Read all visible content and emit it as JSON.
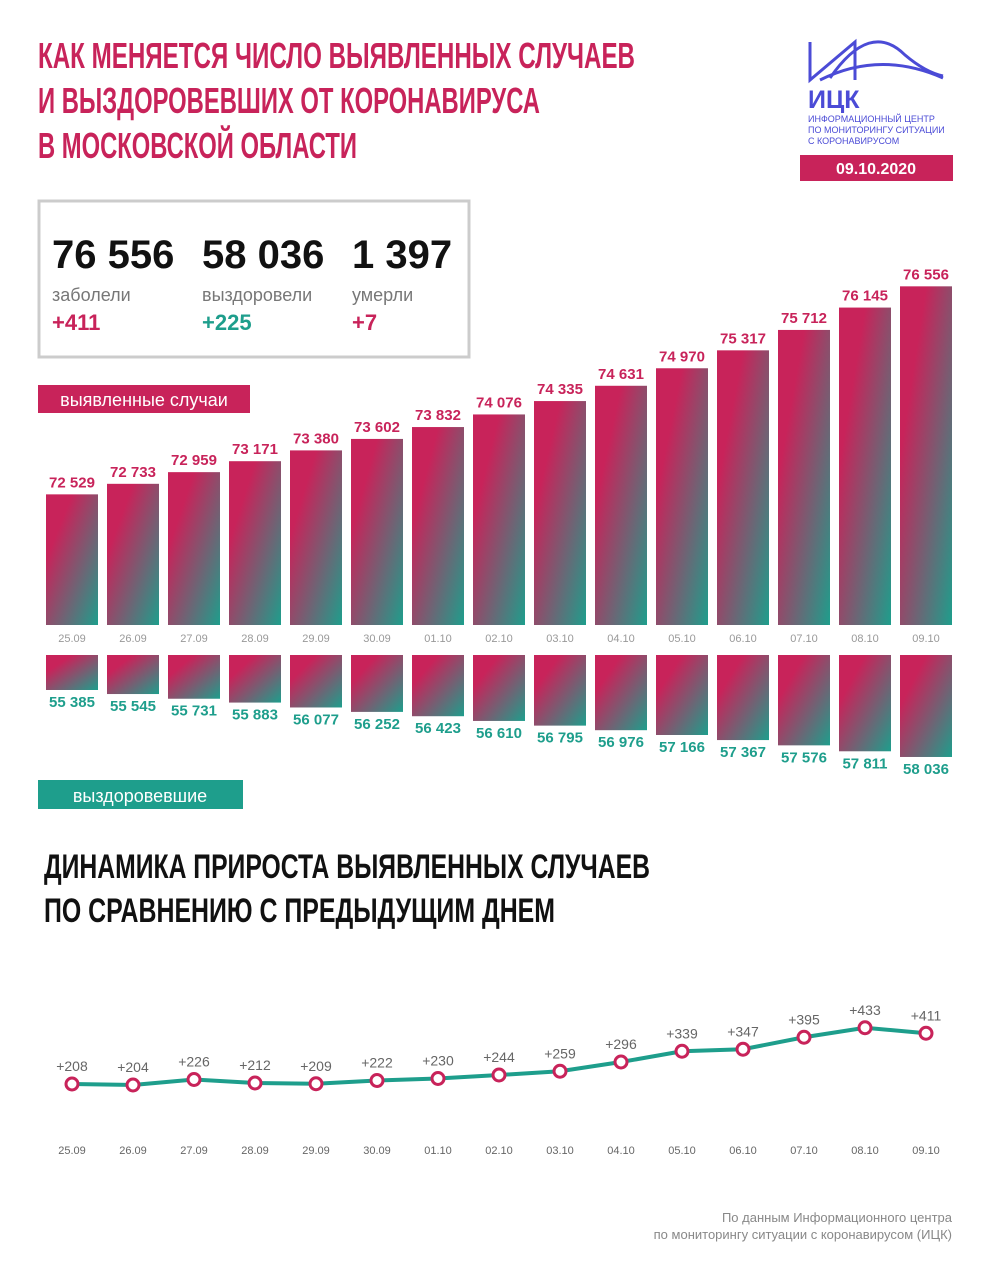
{
  "header": {
    "title": [
      "КАК МЕНЯЕТСЯ ЧИСЛО ВЫЯВЛЕННЫХ СЛУЧАЕВ",
      "И ВЫЗДОРОВЕВШИХ ОТ КОРОНАВИРУСА",
      "В МОСКОВСКОЙ ОБЛАСТИ"
    ],
    "logo": "ИЦК",
    "logo_subtitle": [
      "ИНФОРМАЦИОННЫЙ ЦЕНТР",
      "ПО МОНИТОРИНГУ СИТУАЦИИ",
      "С КОРОНАВИРУСОМ"
    ],
    "date": "09.10.2020"
  },
  "summary": [
    {
      "value": "76 556",
      "label": "заболели",
      "delta": "+411"
    },
    {
      "value": "58 036",
      "label": "выздоровели",
      "delta": "+225"
    },
    {
      "value": "1 397",
      "label": "умерли",
      "delta": "+7"
    }
  ],
  "chart_data": [
    {
      "type": "bar",
      "name": "выявленные случаи",
      "categories": [
        "25.09",
        "26.09",
        "27.09",
        "28.09",
        "29.09",
        "30.09",
        "01.10",
        "02.10",
        "03.10",
        "04.10",
        "05.10",
        "06.10",
        "07.10",
        "08.10",
        "09.10"
      ],
      "values": [
        72529,
        72733,
        72959,
        73171,
        73380,
        73602,
        73832,
        74076,
        74335,
        74631,
        74970,
        75317,
        75712,
        76145,
        76556
      ],
      "value_labels": [
        "72 529",
        "72 733",
        "72 959",
        "73 171",
        "73 380",
        "73 602",
        "73 832",
        "74 076",
        "74 335",
        "74 631",
        "74 970",
        "75 317",
        "75 712",
        "76 145",
        "76 556"
      ],
      "ylim": [
        70000,
        77000
      ],
      "direction": "up",
      "color": "#c8235a"
    },
    {
      "type": "bar",
      "name": "выздоровевшие",
      "values": [
        55385,
        55545,
        55731,
        55883,
        56077,
        56252,
        56423,
        56610,
        56795,
        56976,
        57166,
        57367,
        57576,
        57811,
        58036
      ],
      "value_labels": [
        "55 385",
        "55 545",
        "55 731",
        "55 883",
        "56 077",
        "56 252",
        "56 423",
        "56 610",
        "56 795",
        "56 976",
        "57 166",
        "57 367",
        "57 576",
        "57 811",
        "58 036"
      ],
      "ylim": [
        54000,
        58500
      ],
      "direction": "down",
      "color": "#1e9e8c"
    },
    {
      "type": "line",
      "title": [
        "ДИНАМИКА ПРИРОСТА ВЫЯВЛЕННЫХ СЛУЧАЕВ",
        "ПО СРАВНЕНИЮ С ПРЕДЫДУЩИМ ДНЕМ"
      ],
      "categories": [
        "25.09",
        "26.09",
        "27.09",
        "28.09",
        "29.09",
        "30.09",
        "01.10",
        "02.10",
        "03.10",
        "04.10",
        "05.10",
        "06.10",
        "07.10",
        "08.10",
        "09.10"
      ],
      "values": [
        208,
        204,
        226,
        212,
        209,
        222,
        230,
        244,
        259,
        296,
        339,
        347,
        395,
        433,
        411
      ],
      "value_labels": [
        "+208",
        "+204",
        "+226",
        "+212",
        "+209",
        "+222",
        "+230",
        "+244",
        "+259",
        "+296",
        "+339",
        "+347",
        "+395",
        "+433",
        "+411"
      ],
      "ylim": [
        0,
        500
      ],
      "color": "#1e9e8c",
      "marker_color": "#c8235a"
    }
  ],
  "footer": [
    "По данным Информационного центра",
    "по мониторингу ситуации с коронавирусом (ИЦК)"
  ]
}
